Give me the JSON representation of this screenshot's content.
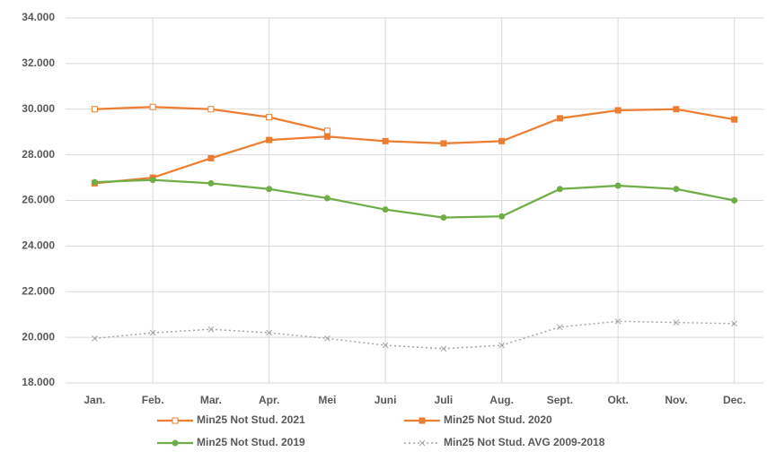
{
  "chart_data": {
    "type": "line",
    "categories": [
      "Jan.",
      "Feb.",
      "Mar.",
      "Apr.",
      "Mei",
      "Juni",
      "Juli",
      "Aug.",
      "Sept.",
      "Okt.",
      "Nov.",
      "Dec."
    ],
    "series": [
      {
        "name": "Min25 Not Stud. 2021",
        "color": "#ed7d31",
        "marker": "square-open",
        "dash": false,
        "values": [
          30000,
          30100,
          30000,
          29650,
          29050,
          null,
          null,
          null,
          null,
          null,
          null,
          null
        ]
      },
      {
        "name": "Min25 Not Stud. 2020",
        "color": "#ed7d31",
        "marker": "square",
        "dash": false,
        "values": [
          26750,
          27000,
          27850,
          28650,
          28800,
          28600,
          28500,
          28600,
          29600,
          29950,
          30000,
          29550
        ]
      },
      {
        "name": "Min25 Not Stud. 2019",
        "color": "#70ad47",
        "marker": "circle",
        "dash": false,
        "values": [
          26800,
          26900,
          26750,
          26500,
          26100,
          25600,
          25250,
          25300,
          26500,
          26650,
          26500,
          26000
        ]
      },
      {
        "name": "Min25 Not Stud. AVG 2009-2018",
        "color": "#a5a5a5",
        "marker": "x",
        "dash": true,
        "values": [
          19950,
          20200,
          20350,
          20200,
          19950,
          19650,
          19500,
          19650,
          20450,
          20700,
          20650,
          20600
        ]
      }
    ],
    "ylim": [
      18000,
      34000
    ],
    "yticks": [
      {
        "value": 18000,
        "label": "18.000"
      },
      {
        "value": 20000,
        "label": "20.000"
      },
      {
        "value": 22000,
        "label": "22.000"
      },
      {
        "value": 24000,
        "label": "24.000"
      },
      {
        "value": 26000,
        "label": "26.000"
      },
      {
        "value": 28000,
        "label": "28.000"
      },
      {
        "value": 30000,
        "label": "30.000"
      },
      {
        "value": 32000,
        "label": "32.000"
      },
      {
        "value": 34000,
        "label": "34.000"
      }
    ],
    "grid": true,
    "legend": "bottom"
  }
}
